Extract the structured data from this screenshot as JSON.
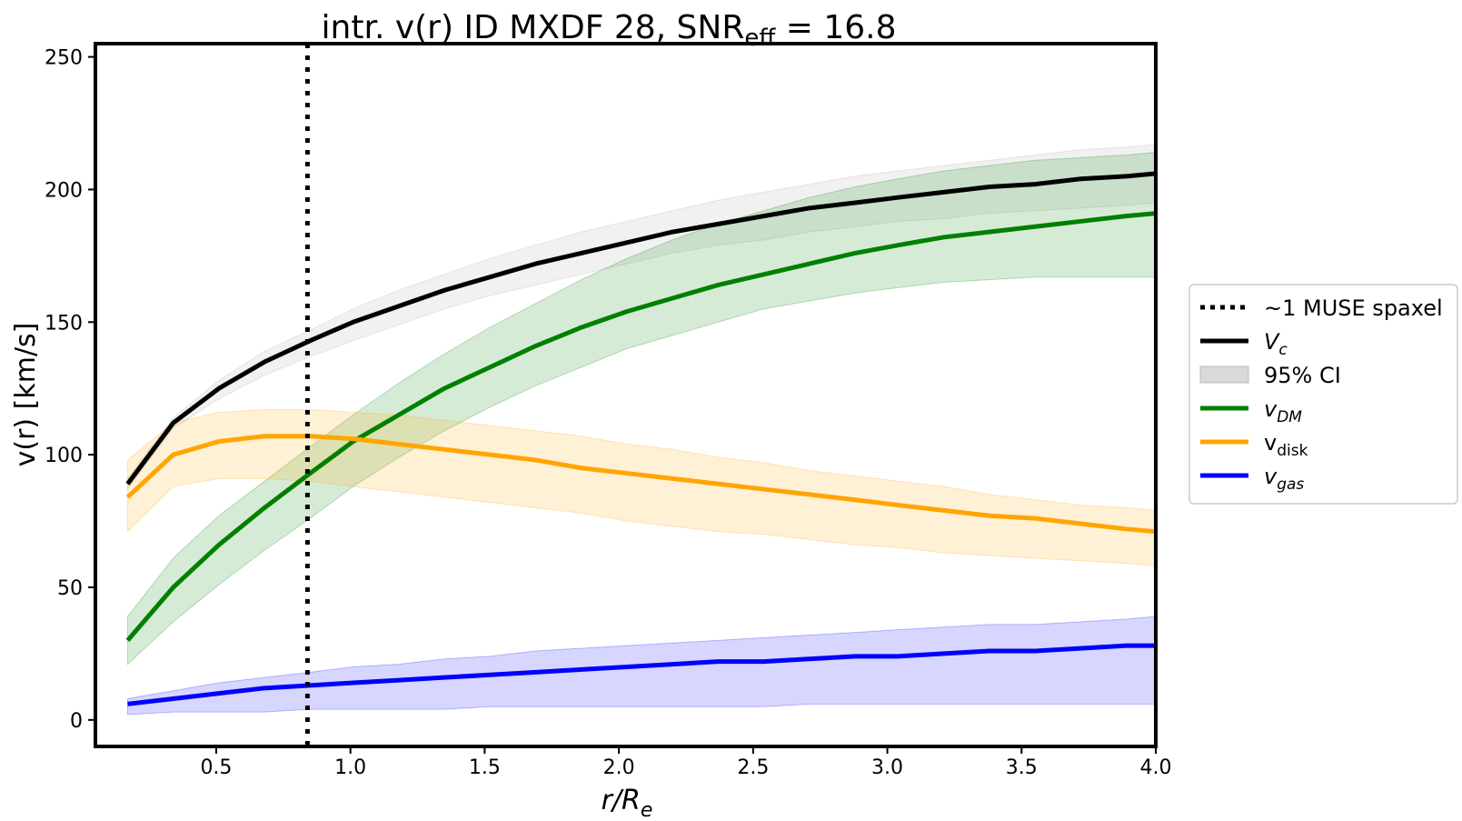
{
  "chart_data": {
    "type": "line",
    "title": {
      "main": "intr. v(r) ID MXDF 28, SNR",
      "sub": "eff",
      "tail": " = 16.8"
    },
    "xlabel": {
      "base": "r/R",
      "sub": "e"
    },
    "ylabel": "v(r) [km/s]",
    "xlim": [
      0.05,
      4.0
    ],
    "ylim": [
      -10,
      255
    ],
    "xticks": [
      "0.5",
      "1.0",
      "1.5",
      "2.0",
      "2.5",
      "3.0",
      "3.5",
      "4.0"
    ],
    "yticks": [
      "0",
      "50",
      "100",
      "150",
      "200",
      "250"
    ],
    "x": [
      0.17,
      0.34,
      0.51,
      0.68,
      0.85,
      1.01,
      1.18,
      1.35,
      1.52,
      1.69,
      1.86,
      2.03,
      2.2,
      2.37,
      2.54,
      2.71,
      2.88,
      3.04,
      3.21,
      3.38,
      3.55,
      3.72,
      3.89,
      4.0
    ],
    "vline": {
      "x": 0.84,
      "label": "~1 MUSE spaxel"
    },
    "series": [
      {
        "name": "V",
        "sub": "c",
        "italic": true,
        "color": "#000000",
        "band_color": "#a9a9a9",
        "values": [
          89,
          112,
          125,
          135,
          143,
          150,
          156,
          162,
          167,
          172,
          176,
          180,
          184,
          187,
          190,
          193,
          195,
          197,
          199,
          201,
          202,
          204,
          205,
          206
        ],
        "lower": [
          87,
          110,
          121,
          130,
          137,
          143,
          149,
          155,
          160,
          164,
          168,
          172,
          176,
          179,
          181,
          184,
          186,
          188,
          189,
          191,
          192,
          193,
          194,
          195
        ],
        "upper": [
          91,
          114,
          128,
          139,
          147,
          155,
          162,
          168,
          174,
          179,
          184,
          188,
          192,
          196,
          199,
          202,
          205,
          207,
          209,
          211,
          213,
          215,
          216,
          217
        ]
      },
      {
        "name": "v",
        "sub": "DM",
        "italic": true,
        "color": "#008000",
        "band_color": "#008000",
        "values": [
          30,
          50,
          66,
          80,
          93,
          105,
          115,
          125,
          133,
          141,
          148,
          154,
          159,
          164,
          168,
          172,
          176,
          179,
          182,
          184,
          186,
          188,
          190,
          191
        ],
        "lower": [
          21,
          37,
          51,
          64,
          76,
          88,
          99,
          109,
          118,
          126,
          133,
          140,
          145,
          150,
          155,
          158,
          161,
          163,
          165,
          166,
          167,
          167,
          167,
          167
        ],
        "upper": [
          39,
          61,
          77,
          90,
          103,
          115,
          127,
          138,
          148,
          157,
          166,
          174,
          181,
          187,
          192,
          197,
          201,
          204,
          207,
          209,
          211,
          212,
          213,
          214
        ]
      },
      {
        "name": "v",
        "sub": "disk",
        "italic": false,
        "color": "#ffa500",
        "band_color": "#ffa500",
        "values": [
          84,
          100,
          105,
          107,
          107,
          106,
          104,
          102,
          100,
          98,
          95,
          93,
          91,
          89,
          87,
          85,
          83,
          81,
          79,
          77,
          76,
          74,
          72,
          71
        ],
        "lower": [
          71,
          88,
          91,
          91,
          90,
          88,
          86,
          84,
          82,
          80,
          78,
          75,
          73,
          71,
          70,
          68,
          66,
          65,
          63,
          62,
          61,
          60,
          59,
          58
        ],
        "upper": [
          98,
          112,
          116,
          117,
          117,
          116,
          115,
          113,
          111,
          109,
          107,
          104,
          102,
          99,
          97,
          94,
          92,
          90,
          88,
          85,
          83,
          81,
          80,
          79
        ]
      },
      {
        "name": "v",
        "sub": "gas",
        "italic": true,
        "color": "#0000ff",
        "band_color": "#0000ff",
        "values": [
          6,
          8,
          10,
          12,
          13,
          14,
          15,
          16,
          17,
          18,
          19,
          20,
          21,
          22,
          22,
          23,
          24,
          24,
          25,
          26,
          26,
          27,
          28,
          28
        ],
        "lower": [
          2,
          3,
          3,
          3,
          4,
          4,
          4,
          4,
          5,
          5,
          5,
          5,
          5,
          5,
          5,
          6,
          6,
          6,
          6,
          6,
          6,
          6,
          6,
          6
        ],
        "upper": [
          8,
          11,
          14,
          16,
          18,
          20,
          21,
          23,
          24,
          26,
          27,
          28,
          29,
          30,
          31,
          32,
          33,
          34,
          35,
          36,
          36,
          37,
          38,
          39
        ]
      }
    ],
    "legend": {
      "position": "right-outside",
      "entries": [
        {
          "kind": "dotted",
          "label": "~1 MUSE spaxel",
          "color": "#000000"
        },
        {
          "kind": "line",
          "base": "V",
          "sub": "c",
          "italic": true,
          "color": "#000000"
        },
        {
          "kind": "patch",
          "label": "95% CI",
          "color": "#d9d9d9"
        },
        {
          "kind": "line",
          "base": "v",
          "sub": "DM",
          "italic": true,
          "color": "#008000"
        },
        {
          "kind": "line",
          "base": "v",
          "sub": "disk",
          "italic": false,
          "color": "#ffa500"
        },
        {
          "kind": "line",
          "base": "v",
          "sub": "gas",
          "italic": true,
          "color": "#0000ff"
        }
      ]
    }
  }
}
